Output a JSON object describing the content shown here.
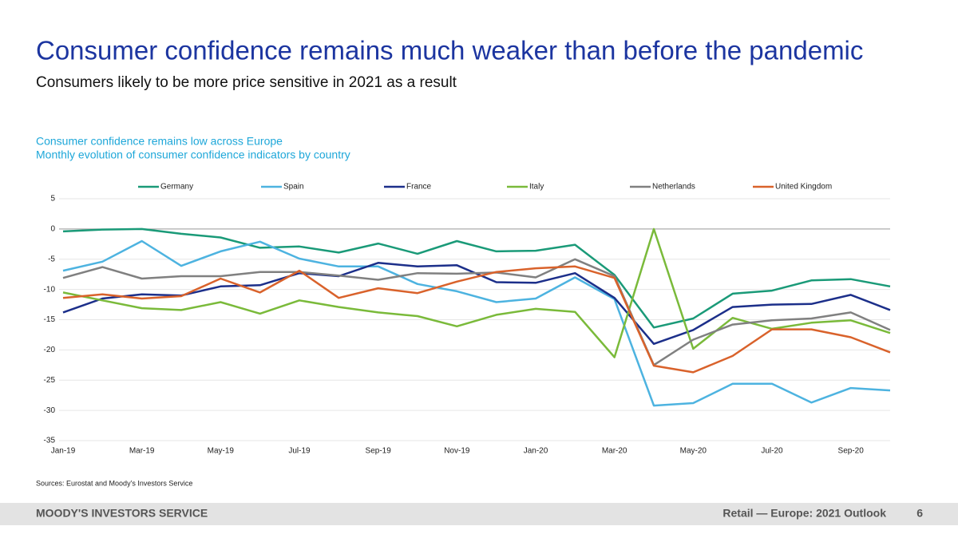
{
  "slide": {
    "title": "Consumer confidence remains much weaker than before the pandemic",
    "subtitle": "Consumers likely to be more price sensitive in 2021 as a result",
    "source": "Sources: Eurostat and Moody’s Investors Service",
    "footer_left": "MOODY'S INVESTORS SERVICE",
    "footer_right": "Retail — Europe: 2021 Outlook",
    "page": "6"
  },
  "chart_data": {
    "type": "line",
    "title": "Consumer confidence remains low across Europe",
    "subtitle": "Monthly evolution of consumer confidence indicators by country",
    "categories": [
      "Jan-19",
      null,
      "Mar-19",
      null,
      "May-19",
      null,
      "Jul-19",
      null,
      "Sep-19",
      null,
      "Nov-19",
      null,
      "Jan-20",
      null,
      "Mar-20",
      null,
      "May-20",
      null,
      "Jul-20",
      null,
      "Sep-20",
      null
    ],
    "series": [
      {
        "name": "Germany",
        "color": "#1a9a78",
        "values": [
          -0.4,
          -0.1,
          0,
          -0.8,
          -1.4,
          -3.1,
          -2.9,
          -3.9,
          -2.4,
          -4.1,
          -2.0,
          -3.7,
          -3.6,
          -2.6,
          -7.6,
          -16.3,
          -14.8,
          -10.7,
          -10.2,
          -8.5,
          -8.3,
          -9.5
        ]
      },
      {
        "name": "Spain",
        "color": "#4db3e0",
        "values": [
          -6.9,
          -5.4,
          -2.0,
          -6.1,
          -3.7,
          -2.1,
          -4.9,
          -6.2,
          -6.2,
          -9.1,
          -10.3,
          -12.1,
          -11.5,
          -8.0,
          -11.6,
          -29.2,
          -28.8,
          -25.6,
          -25.6,
          -28.7,
          -26.3,
          -26.7
        ]
      },
      {
        "name": "France",
        "color": "#1c2f8a",
        "values": [
          -13.8,
          -11.5,
          -10.8,
          -11.0,
          -9.5,
          -9.3,
          -7.3,
          -7.8,
          -5.6,
          -6.2,
          -6.0,
          -8.8,
          -8.9,
          -7.3,
          -11.4,
          -19.0,
          -16.7,
          -12.9,
          -12.5,
          -12.4,
          -10.9,
          -13.4
        ]
      },
      {
        "name": "Italy",
        "color": "#7aba3a",
        "values": [
          -10.5,
          -11.8,
          -13.1,
          -13.4,
          -12.1,
          -14.0,
          -11.8,
          -12.9,
          -13.8,
          -14.4,
          -16.1,
          -14.2,
          -13.2,
          -13.7,
          -21.2,
          0,
          -19.8,
          -14.7,
          -16.5,
          -15.5,
          -15.1,
          -17.2
        ]
      },
      {
        "name": "Netherlands",
        "color": "#808080",
        "values": [
          -8.1,
          -6.3,
          -8.2,
          -7.8,
          -7.8,
          -7.1,
          -7.1,
          -7.7,
          -8.4,
          -7.3,
          -7.4,
          -7.2,
          -8.0,
          -5.0,
          -7.8,
          -22.5,
          -18.3,
          -15.8,
          -15.1,
          -14.8,
          -13.8,
          -16.7
        ]
      },
      {
        "name": "United Kingdom",
        "color": "#d9622b",
        "values": [
          -11.4,
          -10.8,
          -11.5,
          -11.1,
          -8.2,
          -10.5,
          -6.9,
          -11.4,
          -9.8,
          -10.6,
          -8.7,
          -7.1,
          -6.5,
          -6.2,
          -8.1,
          -22.6,
          -23.7,
          -21.0,
          -16.6,
          -16.6,
          -17.9,
          -20.4
        ]
      }
    ],
    "ylim": [
      -35,
      5
    ],
    "yticks": [
      5,
      0,
      -5,
      -10,
      -15,
      -20,
      -25,
      -30,
      -35
    ],
    "grid": true
  }
}
